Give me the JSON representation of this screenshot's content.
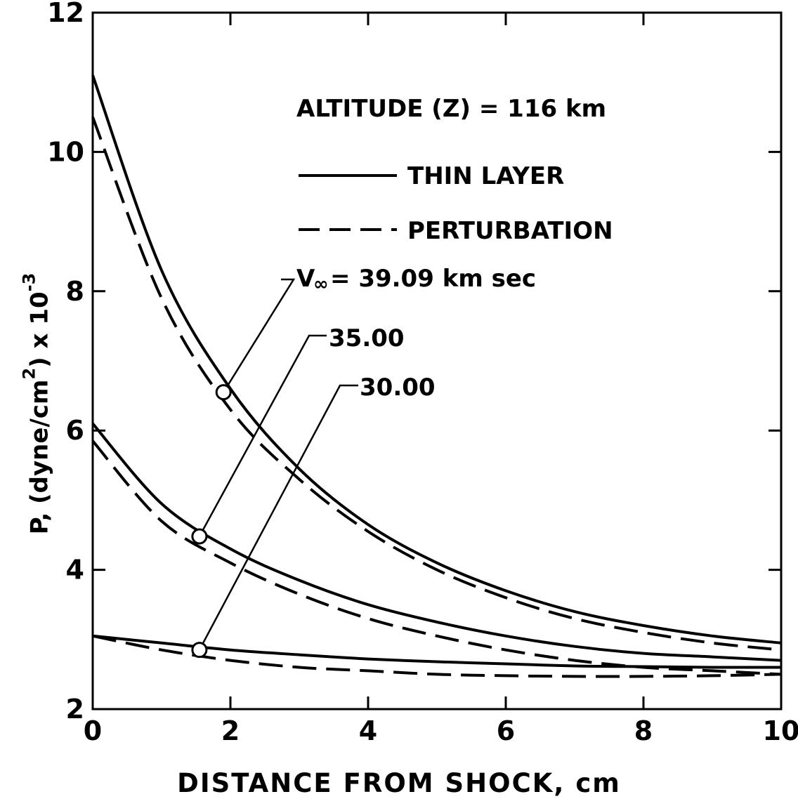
{
  "chart_data": {
    "type": "line",
    "xlabel": "DISTANCE FROM SHOCK, cm",
    "ylabel": {
      "pre": "P, (dyne/cm",
      "sq": "2",
      "mid": ") x 10",
      "exp": "-3"
    },
    "xlim": [
      0,
      10
    ],
    "ylim": [
      2,
      12
    ],
    "x_ticks": [
      "0",
      "2",
      "4",
      "6",
      "8",
      "10"
    ],
    "y_ticks": [
      "2",
      "4",
      "6",
      "8",
      "10",
      "12"
    ],
    "grid": false,
    "annotation_title": "ALTITUDE (Z) = 116 km",
    "legend": [
      {
        "label": "THIN LAYER",
        "style": "solid"
      },
      {
        "label": "PERTURBATION",
        "style": "dashed"
      }
    ],
    "velocity_labels": {
      "v_symbol": "V",
      "v_sub": "∞",
      "top": "= 39.09 km sec",
      "mid": "35.00",
      "low": "30.00"
    },
    "x": [
      0,
      1,
      2,
      3,
      4,
      5,
      6,
      7,
      8,
      9,
      10
    ],
    "series": [
      {
        "name": "THIN LAYER",
        "style": "solid",
        "velocity": "39.09",
        "values": [
          11.1,
          8.3,
          6.6,
          5.45,
          4.65,
          4.1,
          3.7,
          3.4,
          3.2,
          3.05,
          2.95
        ]
      },
      {
        "name": "PERTURBATION",
        "style": "dashed",
        "velocity": "39.09",
        "values": [
          10.5,
          7.9,
          6.3,
          5.3,
          4.55,
          4.0,
          3.6,
          3.3,
          3.1,
          2.95,
          2.85
        ]
      },
      {
        "name": "THIN LAYER",
        "style": "solid",
        "velocity": "35.00",
        "values": [
          6.1,
          4.95,
          4.3,
          3.85,
          3.5,
          3.25,
          3.05,
          2.9,
          2.8,
          2.75,
          2.7
        ]
      },
      {
        "name": "PERTURBATION",
        "style": "dashed",
        "velocity": "35.00",
        "values": [
          5.85,
          4.7,
          4.1,
          3.65,
          3.3,
          3.05,
          2.85,
          2.7,
          2.6,
          2.55,
          2.5
        ]
      },
      {
        "name": "THIN LAYER",
        "style": "solid",
        "velocity": "30.00",
        "values": [
          3.05,
          2.95,
          2.85,
          2.78,
          2.72,
          2.68,
          2.65,
          2.62,
          2.61,
          2.6,
          2.6
        ]
      },
      {
        "name": "PERTURBATION",
        "style": "dashed",
        "velocity": "30.00",
        "values": [
          3.05,
          2.85,
          2.7,
          2.6,
          2.55,
          2.5,
          2.48,
          2.47,
          2.47,
          2.48,
          2.5
        ]
      }
    ],
    "markers": [
      {
        "label": "39.09",
        "x": 1.9,
        "y": 6.55
      },
      {
        "label": "35.00",
        "x": 1.55,
        "y": 4.48
      },
      {
        "label": "30.00",
        "x": 1.55,
        "y": 2.85
      }
    ]
  }
}
